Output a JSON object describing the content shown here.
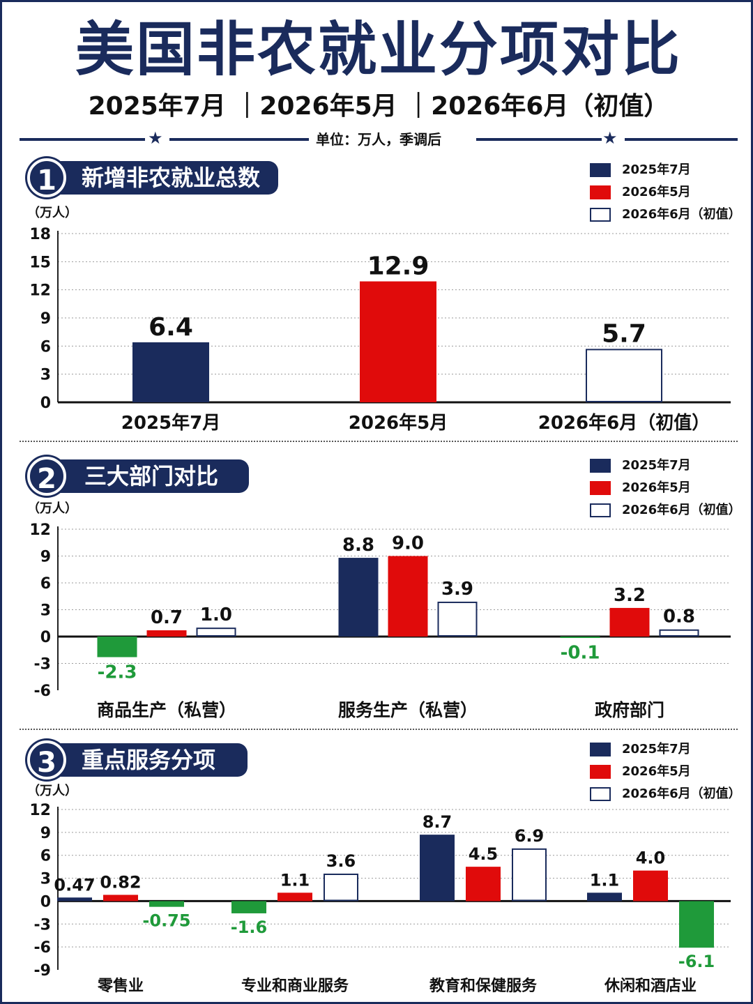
{
  "header": {
    "title": "美国非农就业分项对比",
    "subtitle": "2025年7月 ｜2026年5月 ｜2026年6月（初值）",
    "unit_note": "单位：万人，季调后"
  },
  "colors": {
    "navy": "#1a2b5c",
    "red": "#e00b0b",
    "green": "#1f9a3a",
    "white_fill": "#ffffff"
  },
  "legend": [
    {
      "label": "2025年7月",
      "style": "navy"
    },
    {
      "label": "2026年5月",
      "style": "red"
    },
    {
      "label": "2026年6月（初值）",
      "style": "outline"
    }
  ],
  "sections": [
    {
      "num": "1",
      "title": "新增非农就业总数"
    },
    {
      "num": "2",
      "title": "三大部门对比"
    },
    {
      "num": "3",
      "title": "重点服务分项"
    }
  ],
  "chart_data": [
    {
      "type": "bar",
      "title": "新增非农就业总数",
      "ylabel": "（万人）",
      "ylim": [
        0,
        18
      ],
      "yticks": [
        0,
        3,
        6,
        9,
        12,
        15,
        18
      ],
      "categories": [
        "2025年7月",
        "2026年5月",
        "2026年6月（初值）"
      ],
      "values": [
        6.4,
        12.9,
        5.7
      ],
      "value_labels": [
        "6.4",
        "12.9",
        "5.7"
      ],
      "grid": true
    },
    {
      "type": "bar",
      "title": "三大部门对比",
      "ylabel": "（万人）",
      "ylim": [
        -6,
        12
      ],
      "yticks": [
        -6,
        -3,
        0,
        3,
        6,
        9,
        12
      ],
      "categories": [
        "商品生产（私营）",
        "服务生产（私营）",
        "政府部门"
      ],
      "series": [
        {
          "name": "2025年7月",
          "values": [
            -2.3,
            8.8,
            -0.1
          ],
          "labels": [
            "-2.3",
            "8.8",
            "-0.1"
          ]
        },
        {
          "name": "2026年5月",
          "values": [
            0.7,
            9.0,
            3.2
          ],
          "labels": [
            "0.7",
            "9.0",
            "3.2"
          ]
        },
        {
          "name": "2026年6月（初值）",
          "values": [
            1.0,
            3.9,
            0.8
          ],
          "labels": [
            "1.0",
            "3.9",
            "0.8"
          ]
        }
      ],
      "grid": true
    },
    {
      "type": "bar",
      "title": "重点服务分项",
      "ylabel": "（万人）",
      "ylim": [
        -9,
        12
      ],
      "yticks": [
        -9,
        -6,
        -3,
        0,
        3,
        6,
        9,
        12
      ],
      "categories": [
        "零售业",
        "专业和商业服务",
        "教育和保健服务",
        "休闲和酒店业"
      ],
      "series": [
        {
          "name": "2025年7月",
          "values": [
            0.47,
            -1.6,
            8.7,
            1.1
          ],
          "labels": [
            "0.47",
            "-1.6",
            "8.7",
            "1.1"
          ]
        },
        {
          "name": "2026年5月",
          "values": [
            0.82,
            1.1,
            4.5,
            4.0
          ],
          "labels": [
            "0.82",
            "1.1",
            "4.5",
            "4.0"
          ]
        },
        {
          "name": "2026年6月（初值）",
          "values": [
            -0.75,
            3.6,
            6.9,
            -6.1
          ],
          "labels": [
            "-0.75",
            "3.6",
            "6.9",
            "-6.1"
          ]
        }
      ],
      "grid": true
    }
  ]
}
